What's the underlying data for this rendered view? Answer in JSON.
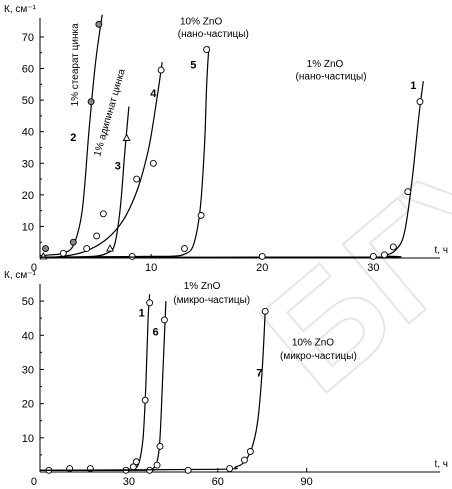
{
  "watermark": "БГУ",
  "chart_data": [
    {
      "type": "line",
      "ylabel": "К, см⁻¹",
      "xlabel": "t, ч",
      "xlim": [
        0,
        36
      ],
      "ylim": [
        0,
        76
      ],
      "xticks": [
        0,
        10,
        20,
        30
      ],
      "yticks": [
        10,
        20,
        30,
        40,
        50,
        60,
        70
      ],
      "xtick_labels": [
        "0",
        "10",
        "20",
        "30"
      ],
      "ytick_labels": [
        "10",
        "20",
        "30",
        "40",
        "50",
        "60",
        "70"
      ],
      "annotations": [
        {
          "text": "1% стеарат цинка",
          "x": 3.4,
          "y": 48,
          "rotate": -90
        },
        {
          "text": "1% адипинат цинка",
          "x": 5.4,
          "y": 32,
          "rotate": -74
        },
        {
          "text": "10% ZnO",
          "x": 12.6,
          "y": 74
        },
        {
          "text": "(нано-частицы)",
          "x": 12.4,
          "y": 70
        },
        {
          "text": "1% ZnO",
          "x": 24,
          "y": 60.5
        },
        {
          "text": "(нано-частицы)",
          "x": 23,
          "y": 56.5
        }
      ],
      "series": [
        {
          "name": "2",
          "label_pos": [
            3.0,
            37
          ],
          "marker": "filled",
          "curve": [
            [
              0,
              0.8
            ],
            [
              1,
              1
            ],
            [
              2,
              1.5
            ],
            [
              3,
              4
            ],
            [
              3.8,
              15
            ],
            [
              4.4,
              40
            ],
            [
              5.0,
              62
            ],
            [
              5.6,
              77
            ]
          ],
          "points": [
            [
              0.5,
              3
            ],
            [
              3.0,
              5
            ],
            [
              4.6,
              49.5
            ],
            [
              5.3,
              74
            ]
          ]
        },
        {
          "name": "4",
          "label_pos": [
            10.2,
            51
          ],
          "marker": "open",
          "curve": [
            [
              0,
              0
            ],
            [
              2,
              0.5
            ],
            [
              4,
              2
            ],
            [
              6,
              6
            ],
            [
              7.5,
              12
            ],
            [
              8.8,
              22
            ],
            [
              9.8,
              35
            ],
            [
              10.5,
              50
            ],
            [
              11,
              62
            ]
          ],
          "points": [
            [
              2.1,
              1.5
            ],
            [
              4.2,
              3
            ],
            [
              5.1,
              7
            ],
            [
              5.7,
              14
            ],
            [
              8.7,
              25
            ],
            [
              10.2,
              30
            ],
            [
              10.9,
              59.5
            ]
          ]
        },
        {
          "name": "3",
          "label_pos": [
            7.0,
            28
          ],
          "marker": "triangle",
          "curve": [
            [
              0,
              0
            ],
            [
              3,
              0.3
            ],
            [
              5,
              0.6
            ],
            [
              6,
              1.5
            ],
            [
              6.7,
              4
            ],
            [
              7.2,
              15
            ],
            [
              7.6,
              32
            ],
            [
              8.0,
              48
            ]
          ],
          "points": [
            [
              0.3,
              0.5
            ],
            [
              6.3,
              3
            ],
            [
              7.8,
              38
            ]
          ]
        },
        {
          "name": "5",
          "label_pos": [
            13.8,
            60
          ],
          "marker": "open",
          "curve": [
            [
              0,
              0.3
            ],
            [
              10,
              0.5
            ],
            [
              12,
              0.6
            ],
            [
              13,
              1.2
            ],
            [
              13.8,
              4
            ],
            [
              14.4,
              15
            ],
            [
              14.8,
              35
            ],
            [
              15.0,
              55
            ],
            [
              15.2,
              67
            ]
          ],
          "points": [
            [
              8.3,
              0.5
            ],
            [
              13.0,
              3
            ],
            [
              14.5,
              13.5
            ],
            [
              15.0,
              66
            ]
          ]
        },
        {
          "name": "1",
          "label_pos": [
            33.6,
            53.5
          ],
          "marker": "open",
          "curve": [
            [
              0,
              0.3
            ],
            [
              30,
              0.3
            ],
            [
              31,
              0.8
            ],
            [
              32,
              2.5
            ],
            [
              32.8,
              8
            ],
            [
              33.5,
              25
            ],
            [
              34.1,
              45
            ],
            [
              34.5,
              56
            ]
          ],
          "points": [
            [
              20.0,
              0.5
            ],
            [
              30.0,
              0.5
            ],
            [
              31.0,
              1
            ],
            [
              31.8,
              3.5
            ],
            [
              33.1,
              21
            ],
            [
              34.2,
              49.5
            ]
          ]
        }
      ]
    },
    {
      "type": "line",
      "ylabel": "К, см⁻¹",
      "xlabel": "t, ч",
      "xlim": [
        0,
        135
      ],
      "ylim": [
        0,
        55
      ],
      "xticks": [
        0,
        30,
        60,
        90
      ],
      "yticks": [
        10,
        20,
        30,
        40,
        50
      ],
      "xtick_labels": [
        "0",
        "30",
        "60",
        "90"
      ],
      "ytick_labels": [
        "10",
        "20",
        "30",
        "40",
        "50"
      ],
      "annotations": [
        {
          "text": "1% ZnO",
          "x": 48.5,
          "y": 53.5
        },
        {
          "text": "(микро-частицы)",
          "x": 45,
          "y": 49.5
        },
        {
          "text": "10% ZnO",
          "x": 85,
          "y": 37
        },
        {
          "text": "(микро-частицы)",
          "x": 81,
          "y": 33
        }
      ],
      "series": [
        {
          "name": "1",
          "label_pos": [
            34.3,
            45.5
          ],
          "marker": "open",
          "curve": [
            [
              0,
              0.5
            ],
            [
              30,
              0.5
            ],
            [
              32,
              1
            ],
            [
              33.5,
              3
            ],
            [
              34.8,
              10
            ],
            [
              35.7,
              25
            ],
            [
              36.5,
              45
            ],
            [
              37,
              52
            ]
          ],
          "points": [
            [
              3,
              0.5
            ],
            [
              10,
              1
            ],
            [
              17,
              1
            ],
            [
              29,
              0.5
            ],
            [
              31.5,
              1.5
            ],
            [
              32.5,
              3
            ],
            [
              35.5,
              21
            ],
            [
              37,
              49.5
            ]
          ]
        },
        {
          "name": "6",
          "label_pos": [
            39,
            40
          ],
          "marker": "open",
          "curve": [
            [
              0,
              0.5
            ],
            [
              35,
              0.5
            ],
            [
              38,
              1
            ],
            [
              39.5,
              3
            ],
            [
              40.5,
              10
            ],
            [
              41.5,
              30
            ],
            [
              42.5,
              50
            ]
          ],
          "points": [
            [
              37,
              0.5
            ],
            [
              39.5,
              2
            ],
            [
              40.5,
              7.5
            ],
            [
              42,
              44.5
            ]
          ]
        },
        {
          "name": "7",
          "label_pos": [
            74,
            28
          ],
          "marker": "open",
          "curve": [
            [
              0,
              0.5
            ],
            [
              60,
              0.8
            ],
            [
              66,
              1.5
            ],
            [
              69,
              3
            ],
            [
              71.5,
              7
            ],
            [
              73.5,
              15
            ],
            [
              75,
              30
            ],
            [
              76,
              47
            ]
          ],
          "points": [
            [
              50,
              0.5
            ],
            [
              64,
              1
            ],
            [
              69,
              3.5
            ],
            [
              71,
              6
            ],
            [
              76,
              47
            ]
          ]
        }
      ]
    }
  ]
}
